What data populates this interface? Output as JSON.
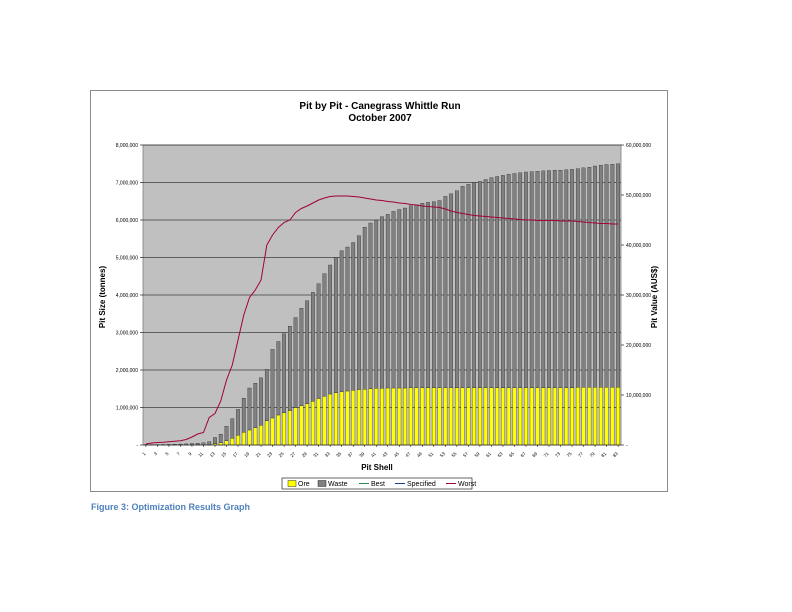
{
  "caption": "Figure 3: Optimization Results Graph",
  "chart_data": {
    "type": "bar",
    "stacked": true,
    "title": "Pit by Pit - Canegrass Whittle Run",
    "subtitle": "October 2007",
    "xlabel": "Pit Shell",
    "ylabel": "Pit Size (tonnes)",
    "y2label": "Pit Value (AUS$)",
    "ylim": [
      0,
      8000000
    ],
    "y2lim": [
      0,
      60000000
    ],
    "yticks": [
      "-",
      "1,000,000",
      "2,000,000",
      "3,000,000",
      "4,000,000",
      "5,000,000",
      "6,000,000",
      "7,000,000",
      "8,000,000"
    ],
    "y2ticks": [
      "-",
      "10,000,000",
      "20,000,000",
      "30,000,000",
      "40,000,000",
      "50,000,000",
      "60,000,000"
    ],
    "x": [
      1,
      2,
      3,
      4,
      5,
      6,
      7,
      8,
      9,
      10,
      11,
      12,
      13,
      14,
      15,
      16,
      17,
      18,
      19,
      20,
      21,
      22,
      23,
      24,
      25,
      26,
      27,
      28,
      29,
      30,
      31,
      32,
      33,
      34,
      35,
      36,
      37,
      38,
      39,
      40,
      41,
      42,
      43,
      44,
      45,
      46,
      47,
      48,
      49,
      50,
      51,
      52,
      53,
      54,
      55,
      56,
      57,
      58,
      59,
      60,
      61,
      62,
      63,
      64,
      65,
      66,
      67,
      68,
      69,
      70,
      71,
      72,
      73,
      74,
      75,
      76,
      77,
      78,
      79,
      80,
      81,
      82,
      83
    ],
    "xticks": [
      "1",
      "3",
      "5",
      "7",
      "9",
      "11",
      "13",
      "15",
      "17",
      "19",
      "21",
      "23",
      "25",
      "27",
      "29",
      "31",
      "33",
      "35",
      "37",
      "39",
      "41",
      "43",
      "45",
      "47",
      "49",
      "51",
      "53",
      "55",
      "57",
      "59",
      "61",
      "63",
      "65",
      "67",
      "69",
      "71",
      "73",
      "75",
      "77",
      "79",
      "81",
      "83"
    ],
    "grid": true,
    "plot_background": "#c0c0c0",
    "legend_position": "bottom",
    "legend": [
      {
        "label": "Ore",
        "kind": "box",
        "color": "#ffff00"
      },
      {
        "label": "Waste",
        "kind": "box",
        "color": "#808080"
      },
      {
        "label": "Best",
        "kind": "line",
        "color": "#2e8b57"
      },
      {
        "label": "Specified",
        "kind": "line",
        "color": "#1f3a93"
      },
      {
        "label": "Worst",
        "kind": "line",
        "color": "#a0003a"
      }
    ],
    "series": [
      {
        "name": "Ore",
        "axis": "left",
        "kind": "bar",
        "color": "#ffff00",
        "values": [
          0,
          0,
          0,
          0,
          0,
          0,
          0,
          0,
          0,
          0,
          0,
          0,
          30000,
          60000,
          110000,
          180000,
          260000,
          340000,
          400000,
          460000,
          530000,
          650000,
          720000,
          800000,
          860000,
          920000,
          990000,
          1050000,
          1100000,
          1170000,
          1240000,
          1300000,
          1360000,
          1390000,
          1420000,
          1440000,
          1460000,
          1480000,
          1490000,
          1500000,
          1510000,
          1510000,
          1520000,
          1520000,
          1520000,
          1520000,
          1530000,
          1530000,
          1530000,
          1530000,
          1530000,
          1530000,
          1530000,
          1530000,
          1530000,
          1530000,
          1530000,
          1530000,
          1530000,
          1530000,
          1530000,
          1530000,
          1530000,
          1530000,
          1530000,
          1530000,
          1530000,
          1530000,
          1530000,
          1530000,
          1530000,
          1530000,
          1530000,
          1530000,
          1530000,
          1540000,
          1540000,
          1540000,
          1540000,
          1540000,
          1540000,
          1540000,
          1540000
        ]
      },
      {
        "name": "Waste",
        "axis": "left",
        "kind": "bar",
        "color": "#808080",
        "values": [
          5000,
          8000,
          10000,
          12000,
          15000,
          20000,
          25000,
          30000,
          40000,
          50000,
          60000,
          90000,
          170000,
          230000,
          390000,
          520000,
          690000,
          910000,
          1120000,
          1190000,
          1260000,
          1370000,
          1830000,
          1960000,
          2110000,
          2250000,
          2410000,
          2600000,
          2750000,
          2900000,
          3060000,
          3270000,
          3440000,
          3610000,
          3760000,
          3840000,
          3940000,
          4100000,
          4320000,
          4420000,
          4490000,
          4580000,
          4630000,
          4710000,
          4760000,
          4800000,
          4850000,
          4880000,
          4920000,
          4940000,
          4960000,
          4990000,
          5100000,
          5170000,
          5250000,
          5370000,
          5420000,
          5470000,
          5500000,
          5550000,
          5600000,
          5630000,
          5660000,
          5690000,
          5710000,
          5730000,
          5750000,
          5760000,
          5770000,
          5780000,
          5790000,
          5800000,
          5800000,
          5810000,
          5820000,
          5830000,
          5850000,
          5870000,
          5900000,
          5920000,
          5940000,
          5950000,
          5960000
        ]
      },
      {
        "name": "Worst",
        "axis": "right",
        "kind": "line",
        "color": "#a0003a",
        "values": [
          200000,
          400000,
          500000,
          550000,
          650000,
          750000,
          850000,
          1100000,
          1600000,
          2200000,
          2500000,
          5500000,
          6300000,
          8800000,
          13000000,
          16000000,
          21000000,
          26000000,
          29500000,
          31000000,
          33000000,
          40000000,
          42000000,
          43500000,
          44500000,
          45000000,
          46500000,
          47300000,
          47800000,
          48400000,
          49000000,
          49400000,
          49700000,
          49800000,
          49800000,
          49800000,
          49700000,
          49600000,
          49400000,
          49200000,
          49000000,
          48900000,
          48700000,
          48600000,
          48400000,
          48300000,
          48100000,
          48000000,
          47800000,
          47700000,
          47600000,
          47500000,
          47200000,
          46800000,
          46500000,
          46300000,
          46100000,
          45900000,
          45800000,
          45700000,
          45600000,
          45500000,
          45400000,
          45300000,
          45200000,
          45100000,
          45000000,
          45000000,
          44900000,
          44900000,
          44900000,
          44900000,
          44800000,
          44800000,
          44800000,
          44700000,
          44600000,
          44500000,
          44400000,
          44300000,
          44300000,
          44200000,
          44200000
        ]
      }
    ]
  }
}
